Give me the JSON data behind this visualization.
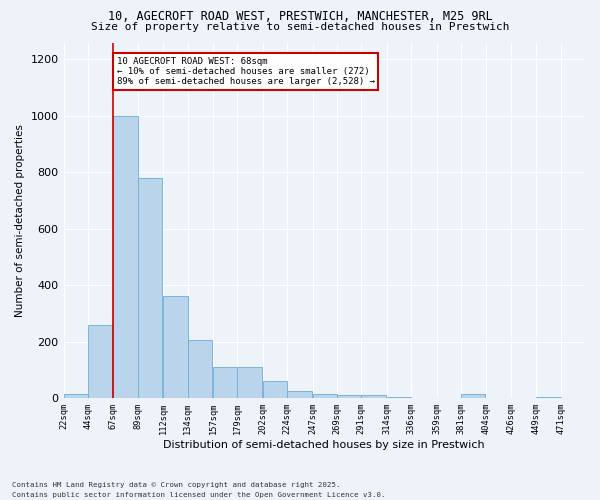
{
  "title_line1": "10, AGECROFT ROAD WEST, PRESTWICH, MANCHESTER, M25 9RL",
  "title_line2": "Size of property relative to semi-detached houses in Prestwich",
  "xlabel": "Distribution of semi-detached houses by size in Prestwich",
  "ylabel": "Number of semi-detached properties",
  "footnote1": "Contains HM Land Registry data © Crown copyright and database right 2025.",
  "footnote2": "Contains public sector information licensed under the Open Government Licence v3.0.",
  "annotation_line1": "10 AGECROFT ROAD WEST: 68sqm",
  "annotation_line2": "← 10% of semi-detached houses are smaller (272)",
  "annotation_line3": "89% of semi-detached houses are larger (2,528) →",
  "bar_left_edges": [
    22,
    44,
    67,
    89,
    112,
    134,
    157,
    179,
    202,
    224,
    247,
    269,
    291,
    314,
    336,
    359,
    381,
    404,
    426,
    449
  ],
  "bar_heights": [
    15,
    260,
    1000,
    780,
    360,
    205,
    110,
    110,
    60,
    25,
    15,
    10,
    10,
    5,
    0,
    0,
    15,
    0,
    0,
    5
  ],
  "bin_width": 22,
  "bar_color": "#bad4ec",
  "bar_edge_color": "#6aaed6",
  "vline_color": "#cc0000",
  "vline_x": 67,
  "annotation_box_edgecolor": "#cc0000",
  "ylim": [
    0,
    1260
  ],
  "yticks": [
    0,
    200,
    400,
    600,
    800,
    1000,
    1200
  ],
  "tick_labels": [
    "22sqm",
    "44sqm",
    "67sqm",
    "89sqm",
    "112sqm",
    "134sqm",
    "157sqm",
    "179sqm",
    "202sqm",
    "224sqm",
    "247sqm",
    "269sqm",
    "291sqm",
    "314sqm",
    "336sqm",
    "359sqm",
    "381sqm",
    "404sqm",
    "426sqm",
    "449sqm",
    "471sqm"
  ],
  "background_color": "#eef2f9",
  "grid_color": "#ffffff",
  "xlim_left": 22,
  "xlim_right": 493
}
